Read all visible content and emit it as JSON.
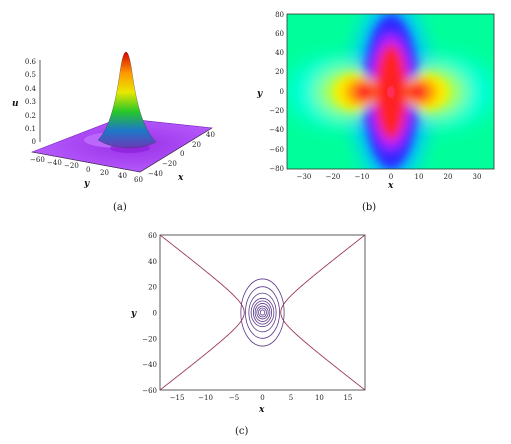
{
  "figure": {
    "captions": {
      "a": "(a)",
      "b": "(b)",
      "c": "(c)"
    }
  },
  "panel_a": {
    "type": "surface3d",
    "zlabel": "u",
    "ylabel": "y",
    "xlabel": "x",
    "z_ticks": [
      "0",
      "0.1",
      "0.2",
      "0.3",
      "0.4",
      "0.5",
      "0.6"
    ],
    "y_ticks": [
      "−60",
      "−40",
      "−20",
      "0",
      "20",
      "40",
      "60"
    ],
    "x_ticks": [
      "−40",
      "−20",
      "0",
      "20",
      "40"
    ],
    "colors": {
      "peak": "#d80000",
      "mid": "#28c828",
      "base": "#a640ff"
    }
  },
  "panel_b": {
    "type": "density",
    "xlabel": "x",
    "ylabel": "y",
    "x_ticks": [
      "−30",
      "−20",
      "−10",
      "0",
      "10",
      "20",
      "30"
    ],
    "y_ticks": [
      "80",
      "60",
      "40",
      "20",
      "0",
      "−20",
      "−40",
      "−60",
      "−80"
    ],
    "xlim": [
      -36,
      36
    ],
    "ylim": [
      -80,
      80
    ],
    "colors": {
      "background": "#00ff9a",
      "blue": "#3028ff",
      "red": "#ff2222",
      "yellow": "#ffee00"
    }
  },
  "chart_data": {
    "type": "contour",
    "xlabel": "x",
    "ylabel": "y",
    "xlim": [
      -18,
      18
    ],
    "ylim": [
      -60,
      60
    ],
    "x_ticks": [
      "−15",
      "−10",
      "−5",
      "0",
      "5",
      "10",
      "15"
    ],
    "y_ticks": [
      "60",
      "40",
      "20",
      "0",
      "−20",
      "−40",
      "−60"
    ],
    "rings": [
      {
        "rx": 0.4,
        "ry": 2
      },
      {
        "rx": 0.7,
        "ry": 3.5
      },
      {
        "rx": 1.0,
        "ry": 5
      },
      {
        "rx": 1.3,
        "ry": 7
      },
      {
        "rx": 1.6,
        "ry": 9
      },
      {
        "rx": 2.0,
        "ry": 11
      },
      {
        "rx": 2.4,
        "ry": 15
      },
      {
        "rx": 3.0,
        "ry": 20
      },
      {
        "rx": 3.8,
        "ry": 26
      }
    ],
    "hyperbola_min_x": 3.2,
    "colors": {
      "rings": "#5a3a8a",
      "outer": "#9a3a55"
    }
  }
}
